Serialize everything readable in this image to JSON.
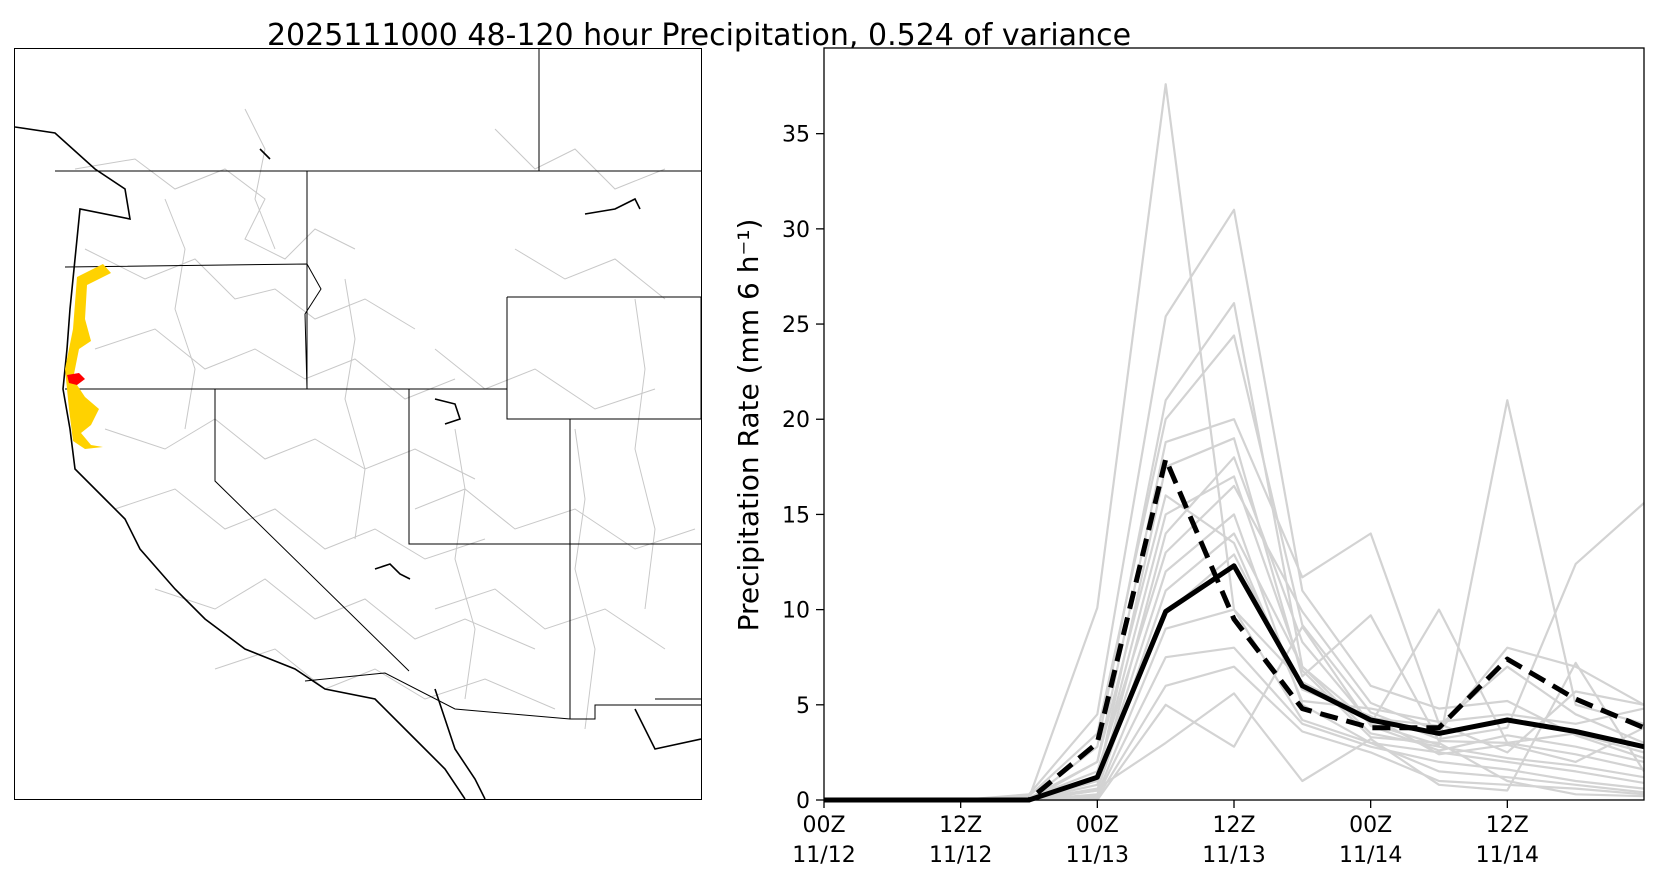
{
  "figure": {
    "title": "2025111000 48-120 hour Precipitation, 0.524 of variance"
  },
  "map": {
    "region": "Western United States",
    "shading_colors": {
      "light": "#ffd200",
      "heavy": "#ff0000"
    },
    "border_color": "#000000",
    "basin_color": "#c8c8c8"
  },
  "chart_data": {
    "type": "line",
    "ylabel": "Precipitation Rate (mm 6 h⁻¹)",
    "xlabel": "",
    "ylim": [
      0,
      39.5
    ],
    "y_ticks": [
      0,
      5,
      10,
      15,
      20,
      25,
      30,
      35
    ],
    "x_tick_labels": [
      [
        "00Z",
        "11/12"
      ],
      [
        "12Z",
        "11/12"
      ],
      [
        "00Z",
        "11/13"
      ],
      [
        "12Z",
        "11/13"
      ],
      [
        "00Z",
        "11/14"
      ],
      [
        "12Z",
        "11/14"
      ]
    ],
    "x_hours": [
      0,
      6,
      12,
      18,
      24,
      30,
      36,
      42,
      48,
      54,
      60,
      66,
      72
    ],
    "xlim": [
      0,
      72
    ],
    "x_tick_hours": [
      0,
      12,
      24,
      36,
      48,
      60
    ],
    "series": [
      {
        "style": "mean-solid",
        "color": "#000000",
        "values": [
          0,
          0,
          0,
          0,
          1.2,
          9.9,
          12.3,
          6.0,
          4.2,
          3.5,
          4.2,
          3.6,
          2.8
        ]
      },
      {
        "style": "mean-dashed",
        "color": "#000000",
        "values": [
          0,
          0,
          0,
          0,
          3.0,
          17.9,
          9.5,
          4.8,
          3.8,
          3.8,
          7.4,
          5.3,
          3.8
        ]
      },
      {
        "style": "member",
        "color": "#d3d3d3",
        "values": [
          0,
          0,
          0,
          0.1,
          10.1,
          37.6,
          10.0,
          6.2,
          4.3,
          3.9,
          7.0,
          4.5,
          3.0
        ]
      },
      {
        "style": "member",
        "color": "#d3d3d3",
        "values": [
          0,
          0,
          0,
          0.3,
          4.5,
          25.4,
          31.0,
          11.0,
          6.0,
          4.8,
          5.2,
          3.4,
          2.2
        ]
      },
      {
        "style": "member",
        "color": "#d3d3d3",
        "values": [
          0,
          0,
          0,
          0.0,
          2.8,
          21.0,
          26.1,
          7.0,
          4.0,
          2.9,
          21.0,
          5.0,
          4.0
        ]
      },
      {
        "style": "member",
        "color": "#d3d3d3",
        "values": [
          0,
          0,
          0,
          0.2,
          3.5,
          20.0,
          24.4,
          9.2,
          4.6,
          3.2,
          3.8,
          12.4,
          15.6
        ]
      },
      {
        "style": "member",
        "color": "#d3d3d3",
        "values": [
          0,
          0,
          0,
          0.0,
          2.0,
          18.8,
          20.0,
          11.7,
          14.0,
          4.0,
          2.5,
          5.7,
          5.0
        ]
      },
      {
        "style": "member",
        "color": "#d3d3d3",
        "values": [
          0,
          0,
          0,
          0.0,
          1.0,
          17.5,
          19.0,
          6.5,
          9.7,
          3.1,
          3.0,
          2.4,
          1.6
        ]
      },
      {
        "style": "member",
        "color": "#d3d3d3",
        "values": [
          0,
          0,
          0,
          0.0,
          0.5,
          14.0,
          18.0,
          8.3,
          4.0,
          10.0,
          3.0,
          3.5,
          2.5
        ]
      },
      {
        "style": "member",
        "color": "#d3d3d3",
        "values": [
          0,
          0,
          0,
          0.1,
          1.5,
          13.0,
          16.5,
          9.9,
          5.1,
          3.6,
          8.0,
          7.0,
          5.0
        ]
      },
      {
        "style": "member",
        "color": "#d3d3d3",
        "values": [
          0,
          0,
          0,
          0.0,
          0.8,
          12.0,
          15.0,
          5.0,
          3.0,
          2.5,
          2.0,
          1.5,
          0.9
        ]
      },
      {
        "style": "member",
        "color": "#d3d3d3",
        "values": [
          0,
          0,
          0,
          0.0,
          0.5,
          11.0,
          14.0,
          7.0,
          3.5,
          2.8,
          2.2,
          1.8,
          1.2
        ]
      },
      {
        "style": "member",
        "color": "#d3d3d3",
        "values": [
          0,
          0,
          0,
          0.0,
          1.0,
          9.8,
          12.9,
          5.8,
          4.4,
          2.4,
          2.9,
          2.0,
          3.8
        ]
      },
      {
        "style": "member",
        "color": "#d3d3d3",
        "values": [
          0,
          0,
          0,
          0.0,
          0.3,
          9.0,
          10.0,
          4.2,
          3.0,
          1.5,
          1.2,
          0.8,
          0.4
        ]
      },
      {
        "style": "member",
        "color": "#d3d3d3",
        "values": [
          0,
          0,
          0,
          0.0,
          0.2,
          7.5,
          8.0,
          4.0,
          2.8,
          2.0,
          1.6,
          1.0,
          0.6
        ]
      },
      {
        "style": "member",
        "color": "#d3d3d3",
        "values": [
          0,
          0,
          0,
          0.0,
          0.1,
          6.0,
          7.0,
          3.6,
          2.5,
          1.0,
          0.8,
          0.6,
          0.3
        ]
      },
      {
        "style": "member",
        "color": "#d3d3d3",
        "values": [
          0,
          0,
          0,
          0.0,
          0.0,
          5.0,
          2.8,
          9.1,
          3.9,
          2.6,
          3.4,
          2.8,
          2.0
        ]
      },
      {
        "style": "member",
        "color": "#d3d3d3",
        "values": [
          0,
          0,
          0,
          0.0,
          0.6,
          3.0,
          5.6,
          1.0,
          3.2,
          0.8,
          0.5,
          7.2,
          1.5
        ]
      },
      {
        "style": "member",
        "color": "#d3d3d3",
        "values": [
          0,
          0,
          0,
          0.1,
          2.0,
          16.0,
          13.5,
          5.2,
          4.8,
          4.1,
          4.5,
          4.0,
          4.8
        ]
      },
      {
        "style": "member",
        "color": "#d3d3d3",
        "values": [
          0,
          0,
          0,
          0.0,
          1.2,
          15.0,
          17.0,
          6.8,
          3.3,
          3.0,
          1.0,
          0.3,
          0.2
        ]
      }
    ]
  }
}
